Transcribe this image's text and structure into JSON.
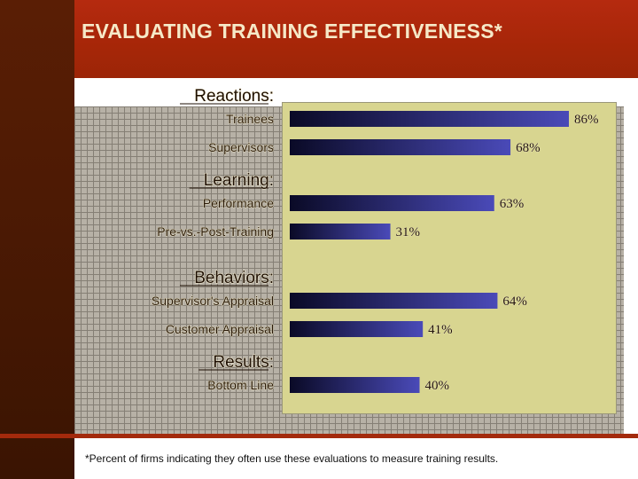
{
  "header": {
    "title": "EVALUATING TRAINING EFFECTIVENESS*"
  },
  "footnote": "*Percent of firms indicating they often use these evaluations to measure training results.",
  "colors": {
    "bar_dark": "#0a0a26",
    "bar_light": "#4a4ab8",
    "plot_bg": "#d8d590",
    "header_bg": "#a62608",
    "sidebar_bg": "#4a1a04"
  },
  "chart_data": {
    "type": "bar",
    "orientation": "horizontal",
    "title": "EVALUATING TRAINING EFFECTIVENESS*",
    "xlabel": "",
    "ylabel": "",
    "xlim": [
      0,
      100
    ],
    "value_suffix": "%",
    "grid": false,
    "legend": "none",
    "groups": [
      {
        "name": "Reactions:",
        "categories": [
          "Trainees",
          "Supervisors"
        ],
        "values": [
          86,
          68
        ]
      },
      {
        "name": "Learning:",
        "categories": [
          "Performance",
          "Pre-vs.-Post-Training"
        ],
        "values": [
          63,
          31
        ]
      },
      {
        "name": "Behaviors:",
        "categories": [
          "Supervisor's Appraisal",
          "Customer Appraisal"
        ],
        "values": [
          64,
          41
        ]
      },
      {
        "name": "Results:",
        "categories": [
          "Bottom Line"
        ],
        "values": [
          40
        ]
      }
    ]
  }
}
